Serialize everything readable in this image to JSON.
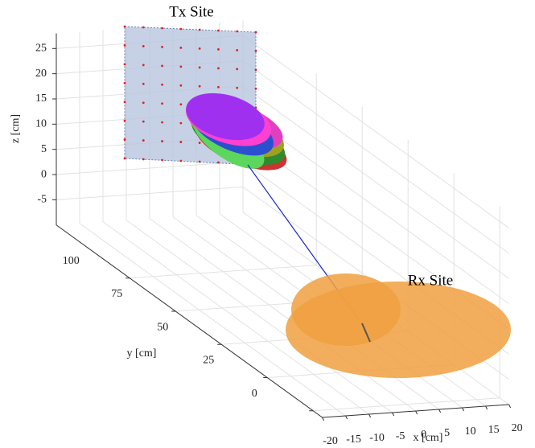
{
  "chart_data": {
    "type": "axes3d",
    "annotations": [
      "Tx Site",
      "Rx Site"
    ],
    "xlabel": "x [cm]",
    "ylabel": "y [cm]",
    "zlabel": "z [cm]",
    "xlim": [
      -20,
      20
    ],
    "xticks": [
      -20,
      -15,
      -10,
      -5,
      0,
      5,
      10,
      15,
      20
    ],
    "ylim": [
      -5,
      140
    ],
    "yticks": [
      0,
      25,
      50,
      75,
      100
    ],
    "zlim": [
      -10,
      28
    ],
    "zticks": [
      -5,
      0,
      5,
      10,
      15,
      20,
      25
    ],
    "grid": true
  }
}
